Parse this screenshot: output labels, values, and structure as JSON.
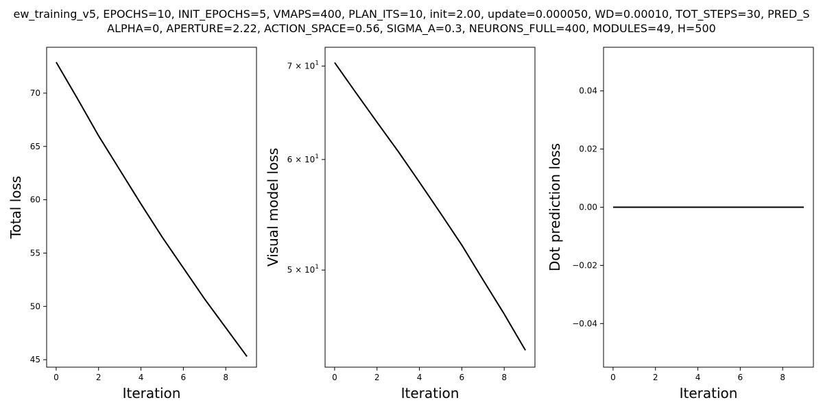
{
  "figure": {
    "title_line1": "ew_training_v5, EPOCHS=10, INIT_EPOCHS=5, VMAPS=400, PLAN_ITS=10, init=2.00, update=0.000050, WD=0.00010, TOT_STEPS=30, PRED_S",
    "title_line2": "ALPHA=0, APERTURE=2.22, ACTION_SPACE=0.56, SIGMA_A=0.3, NEURONS_FULL=400, MODULES=49, H=500"
  },
  "chart_data": [
    {
      "type": "line",
      "xlabel": "Iteration",
      "ylabel": "Total loss",
      "xlim": [
        -0.45,
        9.45
      ],
      "ylim": [
        44.3,
        74.3
      ],
      "y_scale": "linear",
      "line_color": "#000000",
      "x_ticks": [
        {
          "value": 0,
          "label": "0"
        },
        {
          "value": 2,
          "label": "2"
        },
        {
          "value": 4,
          "label": "4"
        },
        {
          "value": 6,
          "label": "6"
        },
        {
          "value": 8,
          "label": "8"
        }
      ],
      "y_ticks": [
        {
          "value": 45,
          "label": "45"
        },
        {
          "value": 50,
          "label": "50"
        },
        {
          "value": 55,
          "label": "55"
        },
        {
          "value": 60,
          "label": "60"
        },
        {
          "value": 65,
          "label": "65"
        },
        {
          "value": 70,
          "label": "70"
        }
      ],
      "x": [
        0,
        1,
        2,
        3,
        4,
        5,
        6,
        7,
        8,
        9
      ],
      "y": [
        72.9,
        69.5,
        66.0,
        62.8,
        59.6,
        56.5,
        53.6,
        50.7,
        48.0,
        45.3
      ]
    },
    {
      "type": "line",
      "xlabel": "Iteration",
      "ylabel": "Visual model loss",
      "xlim": [
        -0.45,
        9.45
      ],
      "ylim": [
        42.6,
        72.2
      ],
      "y_scale": "log",
      "line_color": "#000000",
      "x_ticks": [
        {
          "value": 0,
          "label": "0"
        },
        {
          "value": 2,
          "label": "2"
        },
        {
          "value": 4,
          "label": "4"
        },
        {
          "value": 6,
          "label": "6"
        },
        {
          "value": 8,
          "label": "8"
        }
      ],
      "y_ticks": [
        {
          "value": 50,
          "base": "5 × 10",
          "exp": "1"
        },
        {
          "value": 60,
          "base": "6 × 10",
          "exp": "1"
        },
        {
          "value": 70,
          "base": "7 × 10",
          "exp": "1"
        }
      ],
      "x": [
        0,
        1,
        2,
        3,
        4,
        5,
        6,
        7,
        8,
        9
      ],
      "y": [
        70.4,
        67.0,
        63.8,
        60.8,
        57.8,
        54.9,
        52.1,
        49.2,
        46.5,
        43.8
      ]
    },
    {
      "type": "line",
      "xlabel": "Iteration",
      "ylabel": "Dot prediction loss",
      "xlim": [
        -0.45,
        9.45
      ],
      "ylim": [
        -0.055,
        0.055
      ],
      "y_scale": "linear",
      "line_color": "#000000",
      "x_ticks": [
        {
          "value": 0,
          "label": "0"
        },
        {
          "value": 2,
          "label": "2"
        },
        {
          "value": 4,
          "label": "4"
        },
        {
          "value": 6,
          "label": "6"
        },
        {
          "value": 8,
          "label": "8"
        }
      ],
      "y_ticks": [
        {
          "value": -0.04,
          "label": "−0.04"
        },
        {
          "value": -0.02,
          "label": "−0.02"
        },
        {
          "value": 0.0,
          "label": "0.00"
        },
        {
          "value": 0.02,
          "label": "0.02"
        },
        {
          "value": 0.04,
          "label": "0.04"
        }
      ],
      "x": [
        0,
        1,
        2,
        3,
        4,
        5,
        6,
        7,
        8,
        9
      ],
      "y": [
        0,
        0,
        0,
        0,
        0,
        0,
        0,
        0,
        0,
        0
      ]
    }
  ]
}
